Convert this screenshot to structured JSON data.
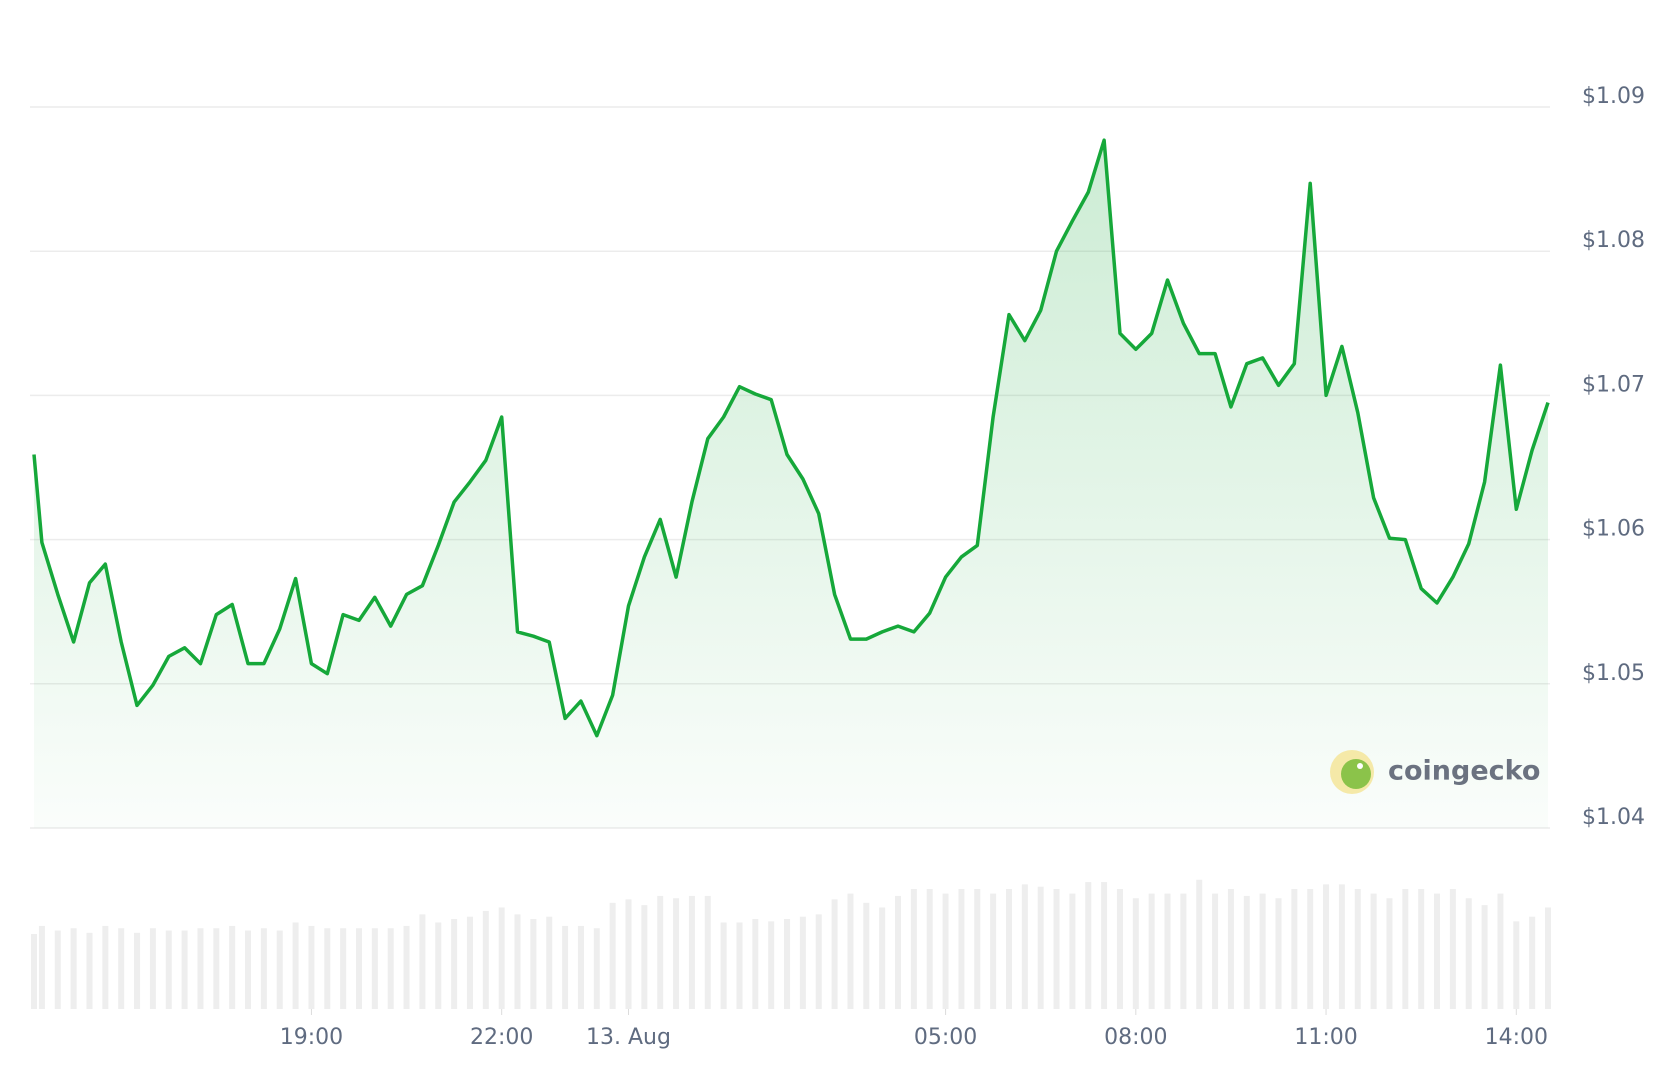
{
  "chart_data": {
    "type": "line",
    "x": [
      14.625,
      14.75,
      15.0,
      15.25,
      15.5,
      15.75,
      16.0,
      16.25,
      16.5,
      16.75,
      17.0,
      17.25,
      17.5,
      17.75,
      18.0,
      18.25,
      18.5,
      18.75,
      19.0,
      19.25,
      19.5,
      19.75,
      20.0,
      20.25,
      20.5,
      20.75,
      21.0,
      21.25,
      21.5,
      21.75,
      22.0,
      22.25,
      22.5,
      22.75,
      23.0,
      23.25,
      23.5,
      23.75,
      24.0,
      24.25,
      24.5,
      24.75,
      25.0,
      25.25,
      25.5,
      25.75,
      26.0,
      26.25,
      26.5,
      26.75,
      27.0,
      27.25,
      27.5,
      27.75,
      28.0,
      28.25,
      28.5,
      28.75,
      29.0,
      29.25,
      29.5,
      29.75,
      30.0,
      30.25,
      30.5,
      30.75,
      31.0,
      31.25,
      31.5,
      31.75,
      32.0,
      32.25,
      32.5,
      32.75,
      33.0,
      33.25,
      33.5,
      33.75,
      34.0,
      34.25,
      34.5,
      34.75,
      35.0,
      35.25,
      35.5,
      35.75,
      36.0,
      36.25,
      36.5,
      36.75,
      37.0,
      37.25,
      37.5,
      37.75,
      38.0,
      38.25,
      38.5
    ],
    "series": [
      {
        "color": "#16a83a",
        "values": [
          1.0659,
          1.0598,
          1.0562,
          1.0529,
          1.057,
          1.0583,
          1.0529,
          1.0485,
          1.0499,
          1.0519,
          1.0525,
          1.0514,
          1.0548,
          1.0555,
          1.0514,
          1.0514,
          1.0538,
          1.0573,
          1.0514,
          1.0507,
          1.0548,
          1.0544,
          1.056,
          1.054,
          1.0562,
          1.0568,
          1.0596,
          1.0626,
          1.064,
          1.0655,
          1.0685,
          1.0536,
          1.0533,
          1.0529,
          1.0476,
          1.0488,
          1.0464,
          1.0492,
          1.0554,
          1.0588,
          1.0614,
          1.0574,
          1.0626,
          1.067,
          1.0685,
          1.0706,
          1.0701,
          1.0697,
          1.0659,
          1.0642,
          1.0618,
          1.0562,
          1.0531,
          1.0531,
          1.0536,
          1.054,
          1.0536,
          1.0549,
          1.0574,
          1.0588,
          1.0596,
          1.0685,
          1.0756,
          1.0738,
          1.0759,
          1.08,
          1.0821,
          1.0841,
          1.0877,
          1.0743,
          1.0732,
          1.0743,
          1.078,
          1.075,
          1.0729,
          1.0729,
          1.0692,
          1.0722,
          1.0726,
          1.0707,
          1.0722,
          1.0847,
          1.07,
          1.0734,
          1.0688,
          1.0629,
          1.0601,
          1.06,
          1.0566,
          1.0556,
          1.0574,
          1.0597,
          1.064,
          1.0721,
          1.0621,
          1.0662,
          1.0695
        ]
      }
    ],
    "volume": {
      "color": "#eeeeee",
      "ylim": [
        0,
        130
      ],
      "values": [
        65,
        72,
        68,
        70,
        66,
        72,
        70,
        66,
        70,
        68,
        68,
        70,
        70,
        72,
        68,
        70,
        68,
        75,
        72,
        70,
        70,
        70,
        70,
        70,
        72,
        82,
        75,
        78,
        80,
        85,
        88,
        82,
        78,
        80,
        72,
        72,
        70,
        92,
        95,
        90,
        98,
        96,
        98,
        98,
        75,
        75,
        78,
        76,
        78,
        80,
        82,
        95,
        100,
        92,
        88,
        98,
        104,
        104,
        100,
        104,
        104,
        100,
        104,
        108,
        106,
        104,
        100,
        110,
        110,
        104,
        96,
        100,
        100,
        100,
        112,
        100,
        104,
        98,
        100,
        96,
        104,
        104,
        108,
        108,
        104,
        100,
        96,
        104,
        104,
        100,
        104,
        96,
        90,
        100,
        76,
        80,
        88
      ]
    },
    "xlim": [
      14.625,
      38.5
    ],
    "xticks": [
      {
        "value": 19,
        "label": "19:00"
      },
      {
        "value": 22,
        "label": "22:00"
      },
      {
        "value": 24,
        "label": "13. Aug"
      },
      {
        "value": 29,
        "label": "05:00"
      },
      {
        "value": 32,
        "label": "08:00"
      },
      {
        "value": 35,
        "label": "11:00"
      },
      {
        "value": 38,
        "label": "14:00"
      }
    ],
    "ylim": [
      1.04,
      1.09
    ],
    "yticks": [
      {
        "value": 1.04,
        "label": "$1.04"
      },
      {
        "value": 1.05,
        "label": "$1.05"
      },
      {
        "value": 1.06,
        "label": "$1.06"
      },
      {
        "value": 1.07,
        "label": "$1.07"
      },
      {
        "value": 1.08,
        "label": "$1.08"
      },
      {
        "value": 1.09,
        "label": "$1.09"
      }
    ],
    "grid": true,
    "watermark": "coingecko"
  }
}
